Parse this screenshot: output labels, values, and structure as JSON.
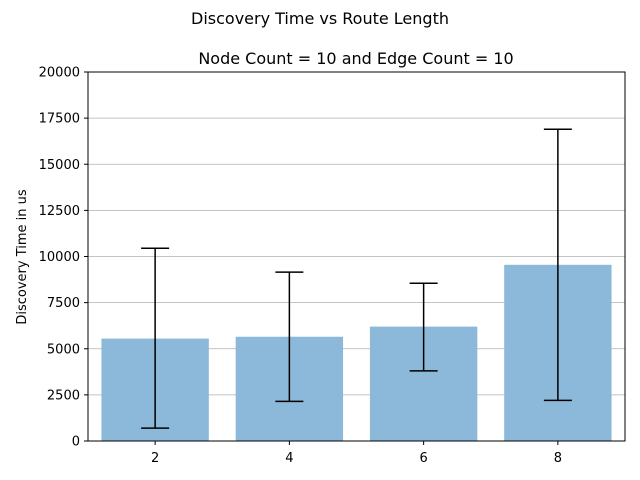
{
  "chart_data": {
    "type": "bar",
    "suptitle": "Discovery Time vs Route Length",
    "title": "Node Count = 10 and Edge Count = 10",
    "xlabel": "",
    "ylabel": "Discovery Time in us",
    "categories": [
      "2",
      "4",
      "6",
      "8"
    ],
    "values": [
      5550,
      5650,
      6200,
      9550
    ],
    "error_low": [
      700,
      2150,
      3800,
      2200
    ],
    "error_high": [
      10450,
      9150,
      8550,
      16900
    ],
    "ylim": [
      0,
      20000
    ],
    "yticks": [
      0,
      2500,
      5000,
      7500,
      10000,
      12500,
      15000,
      17500,
      20000
    ],
    "ytick_labels": [
      "0",
      "2500",
      "5000",
      "7500",
      "10000",
      "12500",
      "15000",
      "17500",
      "20000"
    ],
    "grid": "y-axis on",
    "bar_color": "#8cb9d9",
    "bar_edge_color": "#8cb9d9",
    "errorbar_color": "#000000",
    "grid_color": "#b0b0b0"
  }
}
